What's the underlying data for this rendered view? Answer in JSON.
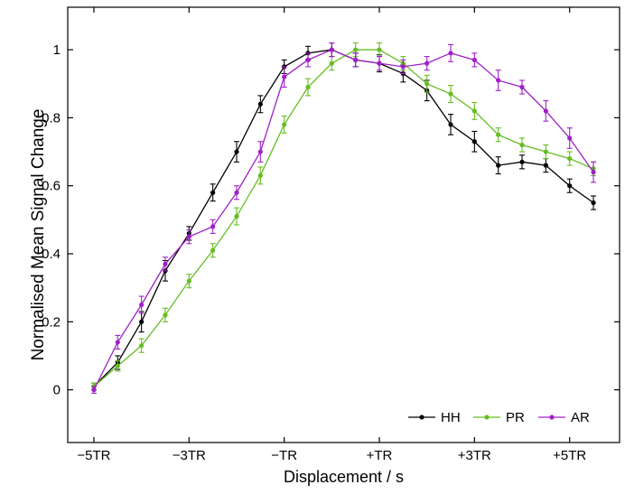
{
  "figure": {
    "xlabel": "Displacement / s",
    "ylabel": "Normalised Mean Signal Change"
  },
  "chart_data": {
    "type": "line",
    "title": "",
    "xlabel": "Displacement / s",
    "ylabel": "Normalised Mean Signal Change",
    "xlim": [
      -5.55,
      6.05
    ],
    "ylim": [
      -0.155,
      1.125
    ],
    "grid": false,
    "legend_position": "bottom-right-inside",
    "x": [
      -5,
      -4.5,
      -4,
      -3.5,
      -3,
      -2.5,
      -2,
      -1.5,
      -1,
      -0.5,
      0,
      0.5,
      1,
      1.5,
      2,
      2.5,
      3,
      3.5,
      4,
      4.5,
      5,
      5.5
    ],
    "xticks": [
      {
        "value": -5,
        "label": "−5TR"
      },
      {
        "value": -3,
        "label": "−3TR"
      },
      {
        "value": -1,
        "label": "−TR"
      },
      {
        "value": 1,
        "label": "+TR"
      },
      {
        "value": 3,
        "label": "+3TR"
      },
      {
        "value": 5,
        "label": "+5TR"
      }
    ],
    "yticks": [
      {
        "value": 0,
        "label": "0"
      },
      {
        "value": 0.2,
        "label": "0.2"
      },
      {
        "value": 0.4,
        "label": "0.4"
      },
      {
        "value": 0.6,
        "label": "0.6"
      },
      {
        "value": 0.8,
        "label": "0.8"
      },
      {
        "value": 1,
        "label": "1"
      }
    ],
    "series": [
      {
        "name": "HH",
        "color": "#000000",
        "values": [
          0.01,
          0.08,
          0.2,
          0.35,
          0.46,
          0.58,
          0.7,
          0.84,
          0.95,
          0.99,
          1.0,
          0.97,
          0.96,
          0.93,
          0.88,
          0.78,
          0.73,
          0.66,
          0.67,
          0.66,
          0.6,
          0.55
        ],
        "errors": [
          0.01,
          0.02,
          0.03,
          0.03,
          0.02,
          0.025,
          0.03,
          0.025,
          0.02,
          0.02,
          0.02,
          0.02,
          0.025,
          0.025,
          0.03,
          0.03,
          0.03,
          0.025,
          0.02,
          0.02,
          0.02,
          0.02
        ]
      },
      {
        "name": "PR",
        "color": "#66bd22",
        "values": [
          0.01,
          0.07,
          0.13,
          0.22,
          0.32,
          0.41,
          0.51,
          0.63,
          0.78,
          0.89,
          0.96,
          1.0,
          1.0,
          0.96,
          0.9,
          0.87,
          0.82,
          0.75,
          0.72,
          0.7,
          0.68,
          0.65
        ],
        "errors": [
          0.01,
          0.015,
          0.02,
          0.02,
          0.02,
          0.02,
          0.025,
          0.025,
          0.025,
          0.025,
          0.02,
          0.02,
          0.02,
          0.02,
          0.025,
          0.025,
          0.025,
          0.02,
          0.02,
          0.02,
          0.02,
          0.02
        ]
      },
      {
        "name": "AR",
        "color": "#a020c8",
        "values": [
          0.0,
          0.14,
          0.25,
          0.37,
          0.45,
          0.48,
          0.58,
          0.7,
          0.92,
          0.97,
          1.0,
          0.97,
          0.96,
          0.95,
          0.96,
          0.99,
          0.97,
          0.91,
          0.89,
          0.82,
          0.74,
          0.64
        ],
        "errors": [
          0.01,
          0.02,
          0.025,
          0.02,
          0.02,
          0.02,
          0.02,
          0.03,
          0.03,
          0.02,
          0.02,
          0.02,
          0.02,
          0.02,
          0.02,
          0.025,
          0.02,
          0.03,
          0.02,
          0.03,
          0.03,
          0.03
        ]
      }
    ]
  }
}
